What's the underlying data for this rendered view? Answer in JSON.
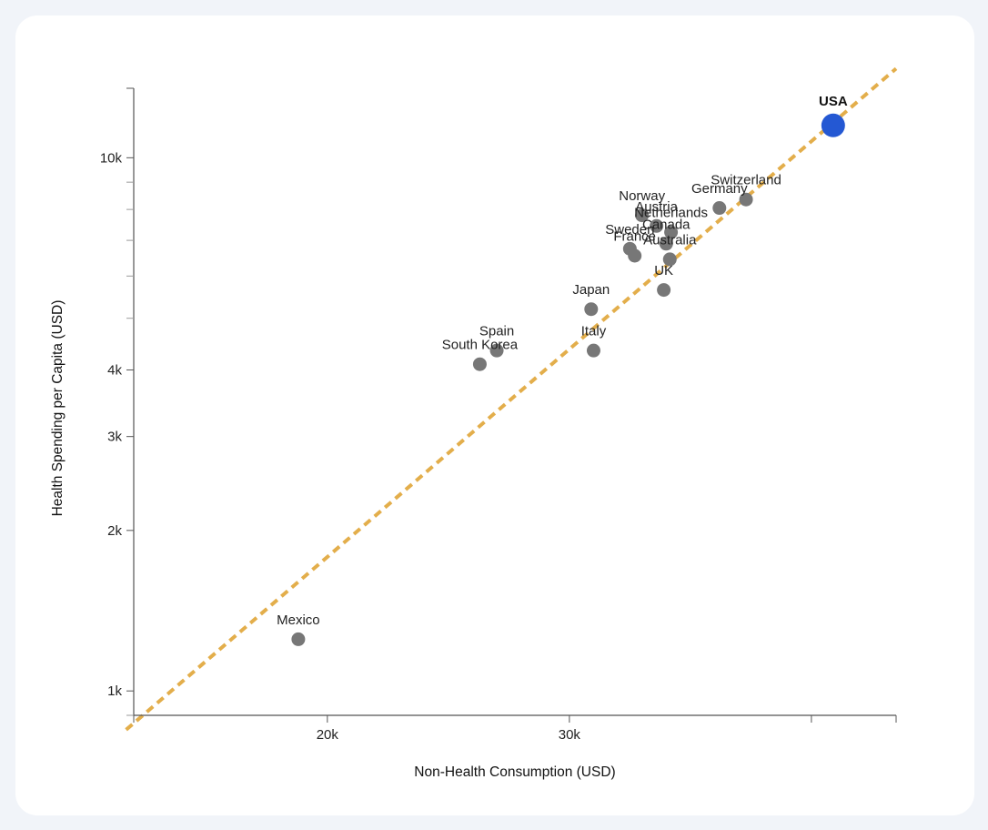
{
  "chart_data": {
    "type": "scatter",
    "title": "",
    "xlabel": "Non-Health Consumption (USD)",
    "ylabel": "Health Spending per Capita (USD)",
    "x_scale": "linear",
    "y_scale": "log",
    "xlim": [
      12000,
      43500
    ],
    "ylim": [
      900,
      13500
    ],
    "x_ticks": [
      {
        "value": 12000,
        "label": ""
      },
      {
        "value": 20000,
        "label": "20k"
      },
      {
        "value": 30000,
        "label": "30k"
      },
      {
        "value": 40000,
        "label": ""
      },
      {
        "value": 43500,
        "label": ""
      }
    ],
    "y_ticks": [
      {
        "value": 1000,
        "label": "1k"
      },
      {
        "value": 2000,
        "label": "2k"
      },
      {
        "value": 3000,
        "label": "3k"
      },
      {
        "value": 4000,
        "label": "4k"
      },
      {
        "value": 10000,
        "label": "10k"
      }
    ],
    "y_minor_ticks": [
      900,
      5000,
      6000,
      7000,
      8000,
      9000
    ],
    "trend_line": {
      "style": "dashed",
      "color": "#e3ae4b",
      "x": [
        12000,
        43500
      ],
      "y": [
        870,
        14700
      ]
    },
    "colors": {
      "point": "#777777",
      "highlight": "#2458d3",
      "trend": "#e3ae4b"
    },
    "points": [
      {
        "name": "USA",
        "x": 40900,
        "y": 11500,
        "highlight": true
      },
      {
        "name": "Switzerland",
        "x": 37300,
        "y": 8350
      },
      {
        "name": "Germany",
        "x": 36200,
        "y": 8050
      },
      {
        "name": "Norway",
        "x": 33000,
        "y": 7800
      },
      {
        "name": "Austria",
        "x": 33600,
        "y": 7450
      },
      {
        "name": "Netherlands",
        "x": 34200,
        "y": 7250
      },
      {
        "name": "Canada",
        "x": 34000,
        "y": 6900
      },
      {
        "name": "Sweden",
        "x": 32500,
        "y": 6750
      },
      {
        "name": "Australia",
        "x": 34150,
        "y": 6450
      },
      {
        "name": "France",
        "x": 32700,
        "y": 6550
      },
      {
        "name": "UK",
        "x": 33900,
        "y": 5650
      },
      {
        "name": "Japan",
        "x": 30900,
        "y": 5200
      },
      {
        "name": "Italy",
        "x": 31000,
        "y": 4350
      },
      {
        "name": "Spain",
        "x": 27000,
        "y": 4350
      },
      {
        "name": "South Korea",
        "x": 26300,
        "y": 4100
      },
      {
        "name": "Mexico",
        "x": 18800,
        "y": 1250
      }
    ]
  }
}
